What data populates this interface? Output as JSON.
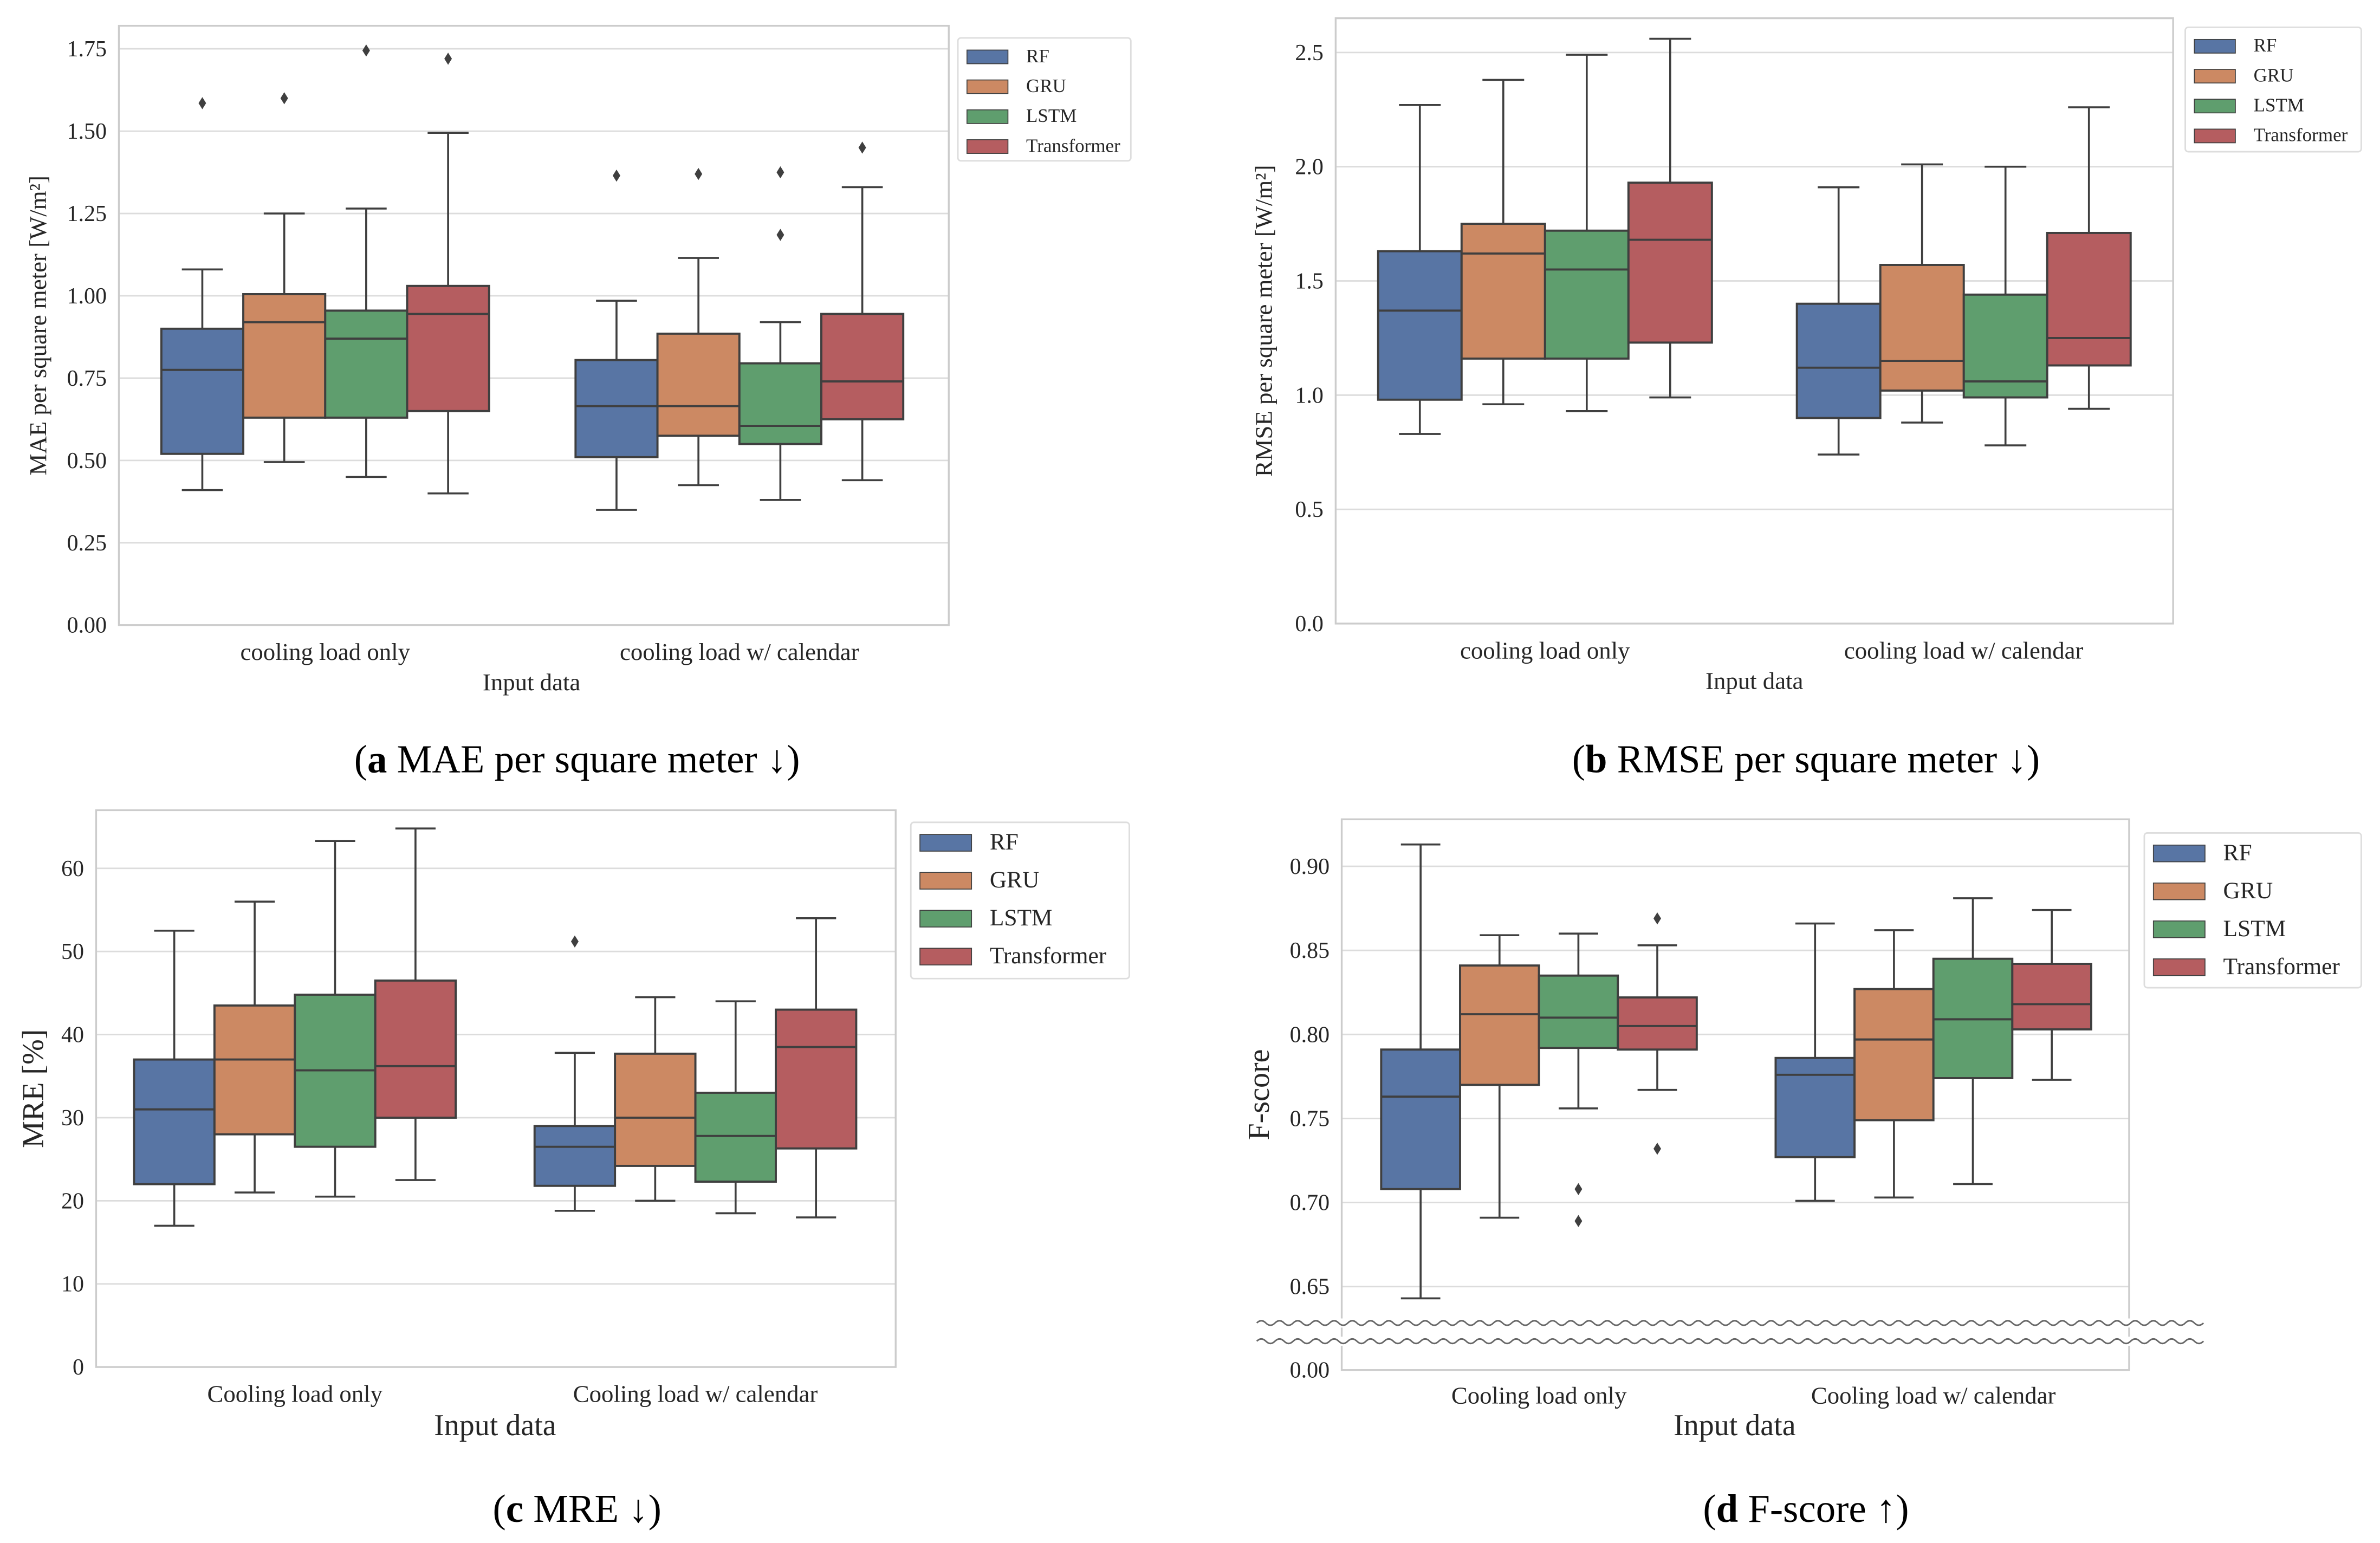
{
  "colors": {
    "RF": "#5875a4",
    "GRU": "#cc8963",
    "LSTM": "#5f9e6e",
    "Transformer": "#b55d60",
    "line": "#3f3f3f",
    "grid": "#dcdcdc",
    "frame": "#cccccc"
  },
  "chart_data": [
    {
      "type": "box",
      "caption_label": "a",
      "caption_text": " MAE per square meter ↓",
      "title": "",
      "xlabel": "Input data",
      "ylabel": "MAE per square meter [W/m²]",
      "ylim": [
        0,
        1.82
      ],
      "yticks": [
        "0.00",
        "0.25",
        "0.50",
        "0.75",
        "1.00",
        "1.25",
        "1.50",
        "1.75"
      ],
      "categories": [
        "cooling load only",
        "cooling load w/ calendar"
      ],
      "legend": [
        "RF",
        "GRU",
        "LSTM",
        "Transformer"
      ],
      "legend_position": "outside-top-right",
      "grid": true,
      "series": [
        {
          "name": "RF",
          "boxes": [
            {
              "whislo": 0.41,
              "q1": 0.52,
              "med": 0.775,
              "q3": 0.9,
              "whishi": 1.08,
              "fliers": [
                1.585
              ]
            },
            {
              "whislo": 0.35,
              "q1": 0.51,
              "med": 0.665,
              "q3": 0.805,
              "whishi": 0.985,
              "fliers": [
                1.365
              ]
            }
          ]
        },
        {
          "name": "GRU",
          "boxes": [
            {
              "whislo": 0.495,
              "q1": 0.63,
              "med": 0.92,
              "q3": 1.005,
              "whishi": 1.25,
              "fliers": [
                1.6
              ]
            },
            {
              "whislo": 0.425,
              "q1": 0.575,
              "med": 0.665,
              "q3": 0.885,
              "whishi": 1.115,
              "fliers": [
                1.37
              ]
            }
          ]
        },
        {
          "name": "LSTM",
          "boxes": [
            {
              "whislo": 0.45,
              "q1": 0.63,
              "med": 0.87,
              "q3": 0.955,
              "whishi": 1.265,
              "fliers": [
                1.745
              ]
            },
            {
              "whislo": 0.38,
              "q1": 0.55,
              "med": 0.605,
              "q3": 0.795,
              "whishi": 0.92,
              "fliers": [
                1.375,
                1.185
              ]
            }
          ]
        },
        {
          "name": "Transformer",
          "boxes": [
            {
              "whislo": 0.4,
              "q1": 0.65,
              "med": 0.945,
              "q3": 1.03,
              "whishi": 1.495,
              "fliers": [
                1.72
              ]
            },
            {
              "whislo": 0.44,
              "q1": 0.625,
              "med": 0.74,
              "q3": 0.945,
              "whishi": 1.33,
              "fliers": [
                1.45
              ]
            }
          ]
        }
      ]
    },
    {
      "type": "box",
      "caption_label": "b",
      "caption_text": " RMSE per square meter ↓",
      "title": "",
      "xlabel": "Input data",
      "ylabel": "RMSE per square meter [W/m²]",
      "ylim": [
        0,
        2.65
      ],
      "yticks": [
        "0.0",
        "0.5",
        "1.0",
        "1.5",
        "2.0",
        "2.5"
      ],
      "categories": [
        "cooling load only",
        "cooling load w/ calendar"
      ],
      "legend": [
        "RF",
        "GRU",
        "LSTM",
        "Transformer"
      ],
      "legend_position": "outside-top-right",
      "grid": true,
      "series": [
        {
          "name": "RF",
          "boxes": [
            {
              "whislo": 0.83,
              "q1": 0.98,
              "med": 1.37,
              "q3": 1.63,
              "whishi": 2.27,
              "fliers": []
            },
            {
              "whislo": 0.74,
              "q1": 0.9,
              "med": 1.12,
              "q3": 1.4,
              "whishi": 1.91,
              "fliers": []
            }
          ]
        },
        {
          "name": "GRU",
          "boxes": [
            {
              "whislo": 0.96,
              "q1": 1.16,
              "med": 1.62,
              "q3": 1.75,
              "whishi": 2.38,
              "fliers": []
            },
            {
              "whislo": 0.88,
              "q1": 1.02,
              "med": 1.15,
              "q3": 1.57,
              "whishi": 2.01,
              "fliers": []
            }
          ]
        },
        {
          "name": "LSTM",
          "boxes": [
            {
              "whislo": 0.93,
              "q1": 1.16,
              "med": 1.55,
              "q3": 1.72,
              "whishi": 2.49,
              "fliers": []
            },
            {
              "whislo": 0.78,
              "q1": 0.99,
              "med": 1.06,
              "q3": 1.44,
              "whishi": 2.0,
              "fliers": []
            }
          ]
        },
        {
          "name": "Transformer",
          "boxes": [
            {
              "whislo": 0.99,
              "q1": 1.23,
              "med": 1.68,
              "q3": 1.93,
              "whishi": 2.56,
              "fliers": []
            },
            {
              "whislo": 0.94,
              "q1": 1.13,
              "med": 1.25,
              "q3": 1.71,
              "whishi": 2.26,
              "fliers": []
            }
          ]
        }
      ]
    },
    {
      "type": "box",
      "caption_label": "c",
      "caption_text": " MRE ↓",
      "title": "",
      "xlabel": "Input data",
      "ylabel": "MRE [%]",
      "ylim": [
        0,
        67
      ],
      "yticks": [
        "0",
        "10",
        "20",
        "30",
        "40",
        "50",
        "60"
      ],
      "categories": [
        "Cooling load only",
        "Cooling load w/ calendar"
      ],
      "legend": [
        "RF",
        "GRU",
        "LSTM",
        "Transformer"
      ],
      "legend_position": "outside-top-right",
      "grid": true,
      "series": [
        {
          "name": "RF",
          "boxes": [
            {
              "whislo": 17,
              "q1": 22,
              "med": 31,
              "q3": 37,
              "whishi": 52.5,
              "fliers": []
            },
            {
              "whislo": 18.8,
              "q1": 21.8,
              "med": 26.5,
              "q3": 29,
              "whishi": 37.8,
              "fliers": [
                51.2
              ]
            }
          ]
        },
        {
          "name": "GRU",
          "boxes": [
            {
              "whislo": 21,
              "q1": 28,
              "med": 37,
              "q3": 43.5,
              "whishi": 56,
              "fliers": []
            },
            {
              "whislo": 20,
              "q1": 24.2,
              "med": 30,
              "q3": 37.7,
              "whishi": 44.5,
              "fliers": []
            }
          ]
        },
        {
          "name": "LSTM",
          "boxes": [
            {
              "whislo": 20.5,
              "q1": 26.5,
              "med": 35.7,
              "q3": 44.8,
              "whishi": 63.3,
              "fliers": []
            },
            {
              "whislo": 18.5,
              "q1": 22.3,
              "med": 27.8,
              "q3": 33,
              "whishi": 44,
              "fliers": []
            }
          ]
        },
        {
          "name": "Transformer",
          "boxes": [
            {
              "whislo": 22.5,
              "q1": 30,
              "med": 36.2,
              "q3": 46.5,
              "whishi": 64.8,
              "fliers": []
            },
            {
              "whislo": 18,
              "q1": 26.3,
              "med": 38.5,
              "q3": 43,
              "whishi": 54,
              "fliers": []
            }
          ]
        }
      ]
    },
    {
      "type": "box",
      "caption_label": "d",
      "caption_text": " F-score ↑",
      "title": "",
      "xlabel": "Input data",
      "ylabel": "F-score",
      "ylim": [
        0.628,
        0.928
      ],
      "axis_break": [
        0.0,
        0.628
      ],
      "yticks": [
        "0.00",
        "0.65",
        "0.70",
        "0.75",
        "0.80",
        "0.85",
        "0.90"
      ],
      "categories": [
        "Cooling load only",
        "Cooling load w/ calendar"
      ],
      "legend": [
        "RF",
        "GRU",
        "LSTM",
        "Transformer"
      ],
      "legend_position": "outside-top-right",
      "grid": true,
      "series": [
        {
          "name": "RF",
          "boxes": [
            {
              "whislo": 0.643,
              "q1": 0.708,
              "med": 0.763,
              "q3": 0.791,
              "whishi": 0.913,
              "fliers": []
            },
            {
              "whislo": 0.701,
              "q1": 0.727,
              "med": 0.776,
              "q3": 0.786,
              "whishi": 0.866,
              "fliers": []
            }
          ]
        },
        {
          "name": "GRU",
          "boxes": [
            {
              "whislo": 0.691,
              "q1": 0.77,
              "med": 0.812,
              "q3": 0.841,
              "whishi": 0.859,
              "fliers": []
            },
            {
              "whislo": 0.703,
              "q1": 0.749,
              "med": 0.797,
              "q3": 0.827,
              "whishi": 0.862,
              "fliers": []
            }
          ]
        },
        {
          "name": "LSTM",
          "boxes": [
            {
              "whislo": 0.756,
              "q1": 0.792,
              "med": 0.81,
              "q3": 0.835,
              "whishi": 0.86,
              "fliers": [
                0.708,
                0.689
              ]
            },
            {
              "whislo": 0.711,
              "q1": 0.774,
              "med": 0.809,
              "q3": 0.845,
              "whishi": 0.881,
              "fliers": []
            }
          ]
        },
        {
          "name": "Transformer",
          "boxes": [
            {
              "whislo": 0.767,
              "q1": 0.791,
              "med": 0.805,
              "q3": 0.822,
              "whishi": 0.853,
              "fliers": [
                0.869,
                0.732
              ]
            },
            {
              "whislo": 0.773,
              "q1": 0.803,
              "med": 0.818,
              "q3": 0.842,
              "whishi": 0.874,
              "fliers": []
            }
          ]
        }
      ]
    }
  ]
}
